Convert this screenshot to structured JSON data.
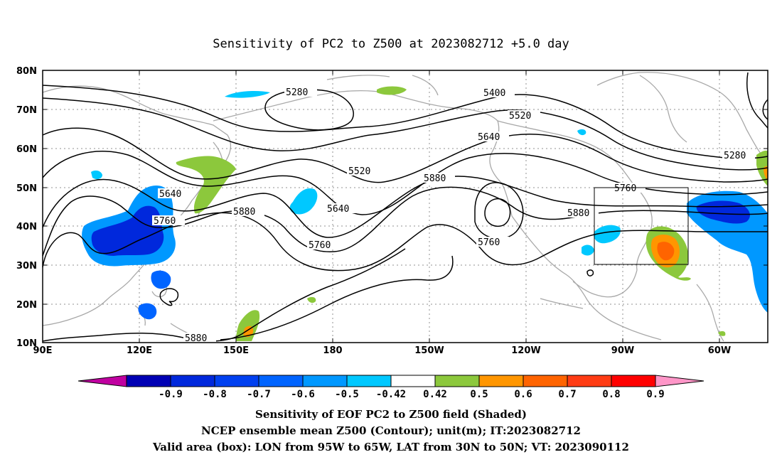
{
  "title": "Sensitivity of PC2 to Z500 at 2023082712 +5.0 day",
  "lat_labels": [
    "80N",
    "70N",
    "60N",
    "50N",
    "40N",
    "30N",
    "20N",
    "10N"
  ],
  "lon_labels": [
    "90E",
    "120E",
    "150E",
    "180",
    "150W",
    "120W",
    "90W",
    "60W"
  ],
  "contours": {
    "unit": "m",
    "labels": [
      "5280",
      "5400",
      "5520",
      "5640",
      "5880",
      "5520",
      "5640",
      "5280",
      "5760",
      "5640",
      "5880",
      "5760",
      "5760",
      "5880",
      "5880",
      "5760"
    ]
  },
  "valid_box": {
    "lon_from": "95W",
    "lon_to": "65W",
    "lat_from": "30N",
    "lat_to": "50N"
  },
  "colorbar": {
    "labels": [
      "-0.9",
      "-0.8",
      "-0.7",
      "-0.6",
      "-0.5",
      "-0.42",
      "0.42",
      "0.5",
      "0.6",
      "0.7",
      "0.8",
      "0.9"
    ],
    "colors": [
      "#c000a0",
      "#0000b4",
      "#0028dc",
      "#0040f0",
      "#0064ff",
      "#0098ff",
      "#00c8ff",
      "#ffffff",
      "#8cc83c",
      "#ff9600",
      "#ff6400",
      "#ff3c14",
      "#ff0000",
      "#ff96c8"
    ]
  },
  "footer": {
    "line1": "Sensitivity of EOF PC2 to Z500 field (Shaded)",
    "line2": "NCEP ensemble mean Z500 (Contour); unit(m); IT:2023082712",
    "line3": "Valid area (box): LON from 95W to 65W, LAT from 30N to 50N; VT: 2023090112"
  }
}
